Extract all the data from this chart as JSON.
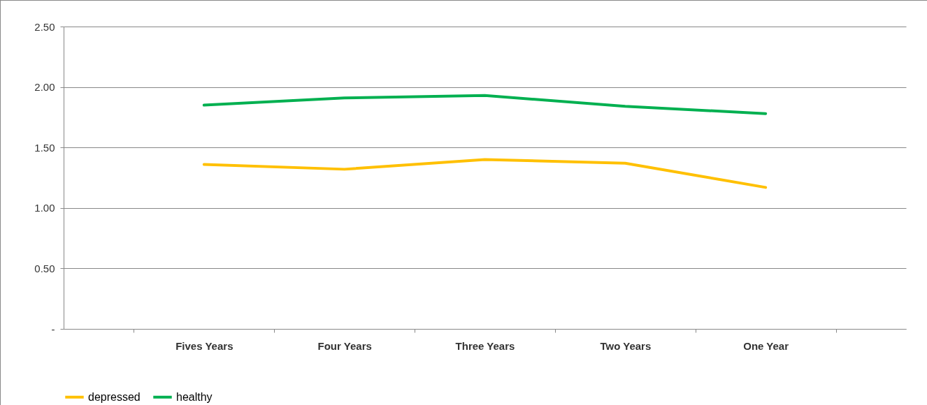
{
  "chart_data": {
    "type": "line",
    "categories": [
      "Fives Years",
      "Four Years",
      "Three Years",
      "Two Years",
      "One Year"
    ],
    "series": [
      {
        "name": "depressed",
        "color": "#ffc000",
        "values": [
          1.36,
          1.32,
          1.4,
          1.37,
          1.17
        ]
      },
      {
        "name": "healthy",
        "color": "#00b050",
        "values": [
          1.85,
          1.91,
          1.93,
          1.84,
          1.78
        ]
      }
    ],
    "ylim": [
      0,
      2.5
    ],
    "yticks": [
      {
        "value": 0,
        "label": "-"
      },
      {
        "value": 0.5,
        "label": "0.50"
      },
      {
        "value": 1,
        "label": "1.00"
      },
      {
        "value": 1.5,
        "label": "1.50"
      },
      {
        "value": 2,
        "label": "2.00"
      },
      {
        "value": 2.5,
        "label": "2.50"
      }
    ],
    "grid": "y",
    "legend": "bottom"
  }
}
